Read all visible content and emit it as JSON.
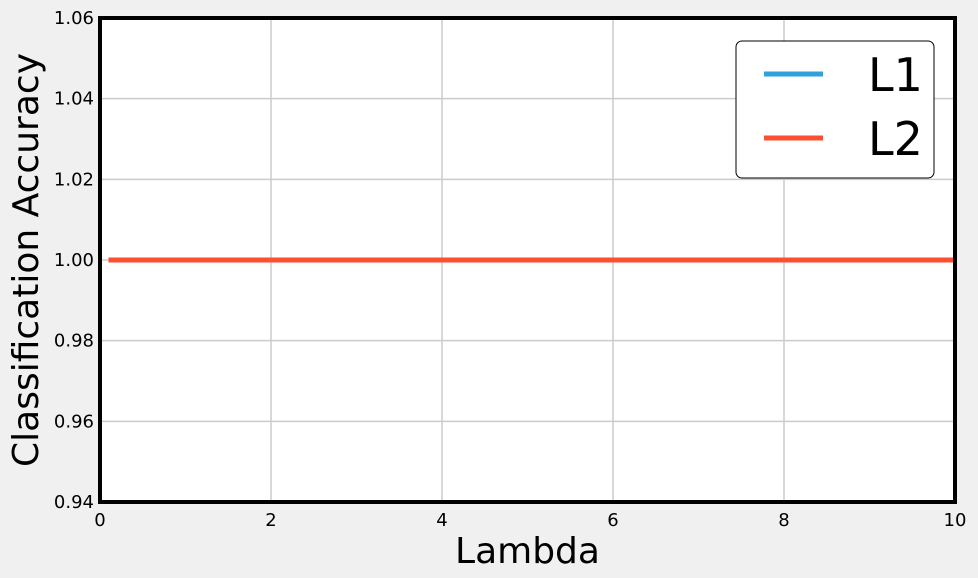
{
  "chart_data": {
    "type": "line",
    "title": "",
    "xlabel": "Lambda",
    "ylabel": "Classification Accuracy",
    "xlim": [
      0,
      10
    ],
    "ylim": [
      0.94,
      1.06
    ],
    "x_ticks": [
      "0",
      "2",
      "4",
      "6",
      "8",
      "10"
    ],
    "y_ticks": [
      "0.94",
      "0.96",
      "0.98",
      "1.00",
      "1.02",
      "1.04",
      "1.06"
    ],
    "grid": true,
    "legend_position": "top-right",
    "series": [
      {
        "name": "L1",
        "color": "#30a2da",
        "x": [
          0.1,
          0.5,
          1,
          2,
          3,
          4,
          5,
          6,
          7,
          8,
          9,
          10
        ],
        "y": [
          1.0,
          1.0,
          1.0,
          1.0,
          1.0,
          1.0,
          1.0,
          1.0,
          1.0,
          1.0,
          1.0,
          1.0
        ]
      },
      {
        "name": "L2",
        "color": "#fc4f30",
        "x": [
          0.1,
          0.5,
          1,
          2,
          3,
          4,
          5,
          6,
          7,
          8,
          9,
          10
        ],
        "y": [
          1.0,
          1.0,
          1.0,
          1.0,
          1.0,
          1.0,
          1.0,
          1.0,
          1.0,
          1.0,
          1.0,
          1.0
        ]
      }
    ]
  }
}
